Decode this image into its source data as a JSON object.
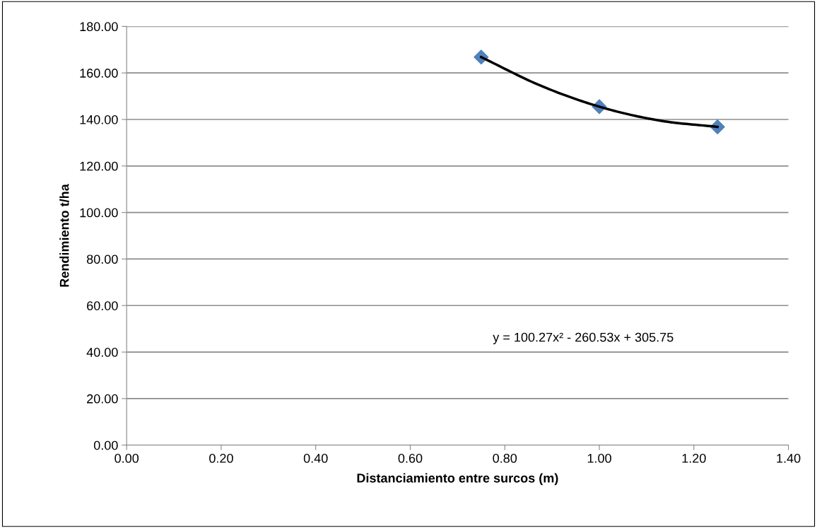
{
  "chart_data": {
    "type": "scatter",
    "xlabel": "Distanciamiento entre surcos (m)",
    "ylabel": "Rendimiento t/ha",
    "series": [
      {
        "color": "#4f81bd",
        "x": [
          0.75,
          1.0,
          1.25
        ],
        "values": [
          166.8,
          145.5,
          136.8
        ],
        "marker": "diamond"
      },
      {
        "type": "line",
        "color": "#000000",
        "x": [
          0.75,
          0.875,
          1.0,
          1.125,
          1.25
        ],
        "values": [
          166.8,
          154.6,
          145.5,
          139.6,
          136.8
        ],
        "marker": "none",
        "line_style": "solid"
      }
    ],
    "annotations": [
      "y = 100.27x² - 260.53x + 305.75"
    ],
    "xlim": [
      0,
      1.4
    ],
    "xticks": [
      {
        "value": 0,
        "label": "0.00"
      },
      {
        "value": 0.2,
        "label": "0.20"
      },
      {
        "value": 0.4,
        "label": "0.40"
      },
      {
        "value": 0.6,
        "label": "0.60"
      },
      {
        "value": 0.8,
        "label": "0.80"
      },
      {
        "value": 1.0,
        "label": "1.00"
      },
      {
        "value": 1.2,
        "label": "1.20"
      },
      {
        "value": 1.4,
        "label": "1.40"
      }
    ],
    "ylim": [
      0,
      180
    ],
    "yticks": [
      {
        "value": 0,
        "label": "0.00"
      },
      {
        "value": 20,
        "label": "20.00"
      },
      {
        "value": 40,
        "label": "40.00"
      },
      {
        "value": 60,
        "label": "60.00"
      },
      {
        "value": 80,
        "label": "80.00"
      },
      {
        "value": 100,
        "label": "100.00"
      },
      {
        "value": 120,
        "label": "120.00"
      },
      {
        "value": 140,
        "label": "140.00"
      },
      {
        "value": 160,
        "label": "160.00"
      },
      {
        "value": 180,
        "label": "180.00"
      }
    ],
    "grid": "y",
    "legend": false
  }
}
